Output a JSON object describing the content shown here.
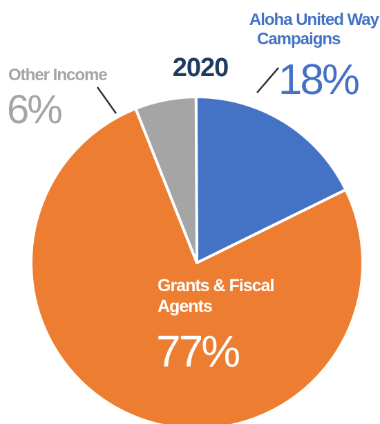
{
  "chart_data": {
    "type": "pie",
    "title": "2020",
    "categories": [
      "Aloha United Way Campaigns",
      "Grants & Fiscal Agents",
      "Other Income"
    ],
    "values": [
      18,
      77,
      6
    ],
    "value_labels": [
      "18%",
      "77%",
      "6%"
    ],
    "label_lines": {
      "aloha": [
        "Aloha United Way",
        "Campaigns"
      ],
      "grants": [
        "Grants & Fiscal",
        "Agents"
      ],
      "other": [
        "Other Income"
      ]
    },
    "colors": {
      "aloha": "#4472c4",
      "grants": "#ed7d31",
      "other": "#a5a5a5",
      "title": "#1f3b5e",
      "white_text": "#ffffff",
      "slice_border": "#ffffff"
    },
    "legend": "none",
    "grid": false
  }
}
